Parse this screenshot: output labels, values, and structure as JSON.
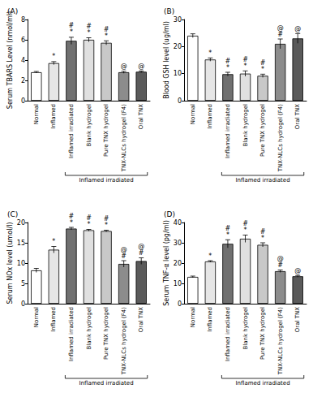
{
  "chart_data": [
    {
      "type": "bar",
      "title": "(A)",
      "y_label": "Serum TBARS Level (nmol/ml)",
      "categories": [
        "Normal",
        "Inflamed",
        "Inflamed irradiated",
        "Blank hydrogel",
        "Pure TNX hydrogel",
        "TNX-NLCs hydrogel (F4)",
        "Oral TNX"
      ],
      "values": [
        2.8,
        3.7,
        5.9,
        6.0,
        5.7,
        2.8,
        2.85
      ],
      "errors": [
        0.08,
        0.15,
        0.35,
        0.2,
        0.2,
        0.1,
        0.08
      ],
      "colors": [
        "#ffffff",
        "#e6e6e6",
        "#707070",
        "#e0e0e0",
        "#c8c8c8",
        "#8c8c8c",
        "#5a5a5a"
      ],
      "annotations": [
        [],
        [
          "*"
        ],
        [
          "#",
          "*"
        ],
        [
          "#",
          "*"
        ],
        [
          "#",
          "*"
        ],
        [
          "@"
        ],
        [
          "@"
        ]
      ],
      "ylim": [
        0,
        8
      ],
      "yticks": [
        0,
        2,
        4,
        6,
        8
      ],
      "bracket": {
        "label": "Inflamed irradiated",
        "first": "Inflamed irradiated",
        "last": "Oral TNX"
      }
    },
    {
      "type": "bar",
      "title": "(B)",
      "y_label": "Blood GSH level (ug/ml)",
      "categories": [
        "Normal",
        "Inflamed",
        "Inflamed irradiated",
        "Blank hydrogel",
        "Pure TNX hydrogel",
        "TNX-NLCs hydrogel (F4)",
        "Oral TNX"
      ],
      "values": [
        24,
        15.2,
        9.8,
        10,
        9.2,
        21,
        23
      ],
      "errors": [
        0.7,
        0.6,
        0.7,
        1.0,
        0.6,
        1.8,
        1.8
      ],
      "colors": [
        "#ffffff",
        "#e6e6e6",
        "#707070",
        "#e0e0e0",
        "#c8c8c8",
        "#8c8c8c",
        "#5a5a5a"
      ],
      "annotations": [
        [],
        [
          "*"
        ],
        [
          "#",
          "*"
        ],
        [
          "#",
          "*"
        ],
        [
          "#",
          "*"
        ],
        [
          "@",
          "#"
        ],
        [
          "@"
        ]
      ],
      "ylim": [
        0,
        30
      ],
      "yticks": [
        0,
        10,
        20,
        30
      ],
      "bracket": {
        "label": "Inflamed irradiated",
        "first": "Inflamed irradiated",
        "last": "Oral TNX"
      }
    },
    {
      "type": "bar",
      "title": "(C)",
      "y_label": "Serum NOx level (umol/l)",
      "categories": [
        "Normal",
        "Inflamed",
        "Inflamed irradiated",
        "Blank hydrogel",
        "Pure TNX hydrogel",
        "TNX-NLCs hydrogel (F4)",
        "Oral TNX"
      ],
      "values": [
        8.2,
        13.3,
        18.5,
        18.1,
        17.9,
        9.8,
        10.5
      ],
      "errors": [
        0.5,
        0.8,
        0.3,
        0.2,
        0.2,
        0.8,
        0.8
      ],
      "colors": [
        "#ffffff",
        "#e6e6e6",
        "#707070",
        "#e0e0e0",
        "#c8c8c8",
        "#8c8c8c",
        "#5a5a5a"
      ],
      "annotations": [
        [],
        [
          "*"
        ],
        [
          "#",
          "*"
        ],
        [
          "#",
          "*"
        ],
        [
          "#",
          "*"
        ],
        [
          "@",
          "#"
        ],
        [
          "@",
          "#"
        ]
      ],
      "ylim": [
        0,
        20
      ],
      "yticks": [
        0,
        5,
        10,
        15,
        20
      ],
      "bracket": {
        "label": "Inflamed irradiated",
        "first": "Inflamed irradiated",
        "last": "Oral TNX"
      }
    },
    {
      "type": "bar",
      "title": "(D)",
      "y_label": "Serum TNF-α level (pg/ml)",
      "categories": [
        "Normal",
        "Inflamed",
        "Inflamed irradiated",
        "Blank hydrogel",
        "Pure TNX hydrogel",
        "TNX-NLCs hydrogel (F4)",
        "Oral TNX"
      ],
      "values": [
        13.2,
        20.8,
        29.5,
        32,
        29,
        16,
        13.5
      ],
      "errors": [
        0.4,
        0.4,
        2.0,
        1.8,
        1.0,
        0.6,
        0.4
      ],
      "colors": [
        "#ffffff",
        "#e6e6e6",
        "#707070",
        "#e0e0e0",
        "#c8c8c8",
        "#8c8c8c",
        "#5a5a5a"
      ],
      "annotations": [
        [],
        [
          "*"
        ],
        [
          "#",
          "*"
        ],
        [
          "#",
          "*"
        ],
        [
          "#",
          "*"
        ],
        [
          "@",
          "#"
        ],
        [
          "@"
        ]
      ],
      "ylim": [
        0,
        40
      ],
      "yticks": [
        0,
        10,
        20,
        30,
        40
      ],
      "bracket": {
        "label": "Inflamed irradiated",
        "first": "Inflamed irradiated",
        "last": "Oral TNX"
      }
    }
  ]
}
